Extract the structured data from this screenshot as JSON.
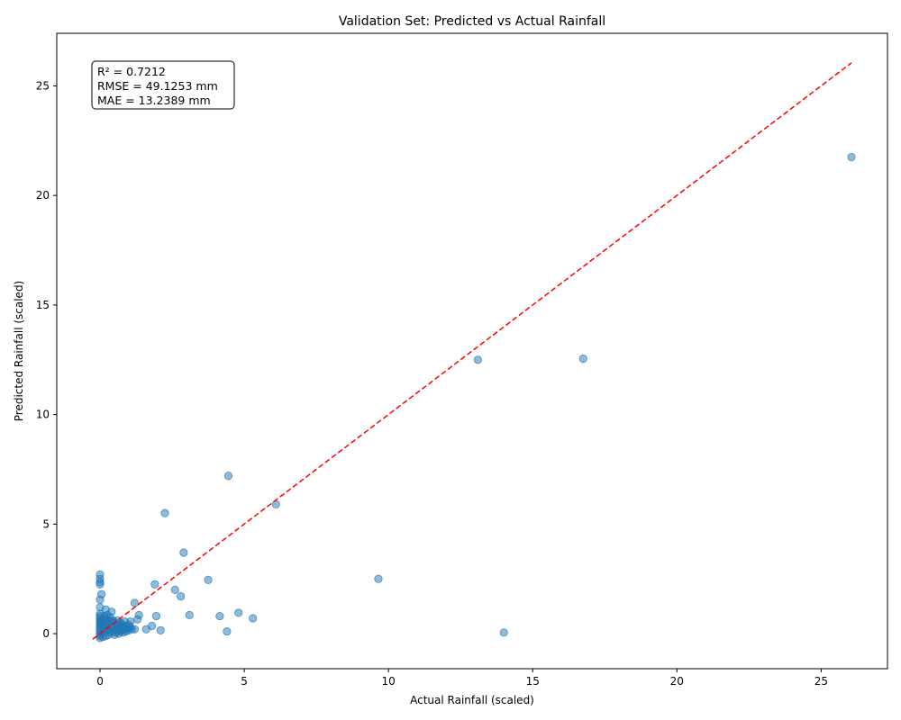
{
  "chart_data": {
    "type": "scatter",
    "title": "Validation Set: Predicted vs Actual Rainfall",
    "xlabel": "Actual Rainfall (scaled)",
    "ylabel": "Predicted Rainfall (scaled)",
    "xlim": [
      -1.5,
      27.3
    ],
    "ylim": [
      -1.6,
      27.4
    ],
    "x_ticks": [
      0,
      5,
      10,
      15,
      20,
      25
    ],
    "y_ticks": [
      0,
      5,
      10,
      15,
      20,
      25
    ],
    "grid": false,
    "point_color": "#1f77b4",
    "reference_line": {
      "style": "dashed",
      "color": "#ff0000",
      "from": [
        -0.25,
        -0.25
      ],
      "to": [
        26.05,
        26.05
      ]
    },
    "stats": [
      "R² = 0.7212",
      "RMSE = 49.1253 mm",
      "MAE = 13.2389 mm"
    ],
    "points": [
      [
        26.05,
        21.75
      ],
      [
        16.75,
        12.55
      ],
      [
        13.1,
        12.5
      ],
      [
        4.45,
        7.2
      ],
      [
        6.1,
        5.9
      ],
      [
        2.25,
        5.5
      ],
      [
        2.9,
        3.7
      ],
      [
        9.65,
        2.5
      ],
      [
        3.75,
        2.45
      ],
      [
        1.9,
        2.25
      ],
      [
        2.6,
        2.0
      ],
      [
        2.8,
        1.7
      ],
      [
        0.0,
        2.7
      ],
      [
        0.0,
        2.5
      ],
      [
        0.0,
        2.35
      ],
      [
        0.0,
        2.25
      ],
      [
        0.05,
        1.8
      ],
      [
        0.0,
        1.55
      ],
      [
        1.2,
        1.4
      ],
      [
        0.0,
        1.2
      ],
      [
        0.2,
        1.1
      ],
      [
        0.4,
        1.0
      ],
      [
        4.8,
        0.95
      ],
      [
        3.1,
        0.85
      ],
      [
        1.35,
        0.85
      ],
      [
        1.95,
        0.8
      ],
      [
        4.15,
        0.8
      ],
      [
        5.3,
        0.7
      ],
      [
        1.3,
        0.65
      ],
      [
        1.05,
        0.55
      ],
      [
        1.8,
        0.35
      ],
      [
        1.6,
        0.2
      ],
      [
        2.1,
        0.15
      ],
      [
        1.2,
        0.2
      ],
      [
        4.4,
        0.1
      ],
      [
        14.0,
        0.05
      ],
      [
        0.0,
        0.9
      ],
      [
        0.0,
        0.8
      ],
      [
        0.0,
        0.7
      ],
      [
        0.0,
        0.6
      ],
      [
        0.0,
        0.5
      ],
      [
        0.0,
        0.4
      ],
      [
        0.0,
        0.3
      ],
      [
        0.0,
        0.2
      ],
      [
        0.0,
        0.1
      ],
      [
        0.0,
        0.0
      ],
      [
        0.0,
        -0.1
      ],
      [
        0.0,
        -0.2
      ],
      [
        0.05,
        0.35
      ],
      [
        0.05,
        0.05
      ],
      [
        0.1,
        0.65
      ],
      [
        0.1,
        0.25
      ],
      [
        0.1,
        -0.15
      ],
      [
        0.15,
        0.45
      ],
      [
        0.15,
        0.1
      ],
      [
        0.2,
        0.7
      ],
      [
        0.2,
        0.3
      ],
      [
        0.2,
        -0.1
      ],
      [
        0.25,
        0.5
      ],
      [
        0.25,
        0.15
      ],
      [
        0.3,
        0.6
      ],
      [
        0.3,
        0.2
      ],
      [
        0.3,
        -0.05
      ],
      [
        0.35,
        0.4
      ],
      [
        0.35,
        0.05
      ],
      [
        0.4,
        0.55
      ],
      [
        0.4,
        0.25
      ],
      [
        0.45,
        0.1
      ],
      [
        0.45,
        0.35
      ],
      [
        0.5,
        0.5
      ],
      [
        0.5,
        0.2
      ],
      [
        0.5,
        -0.05
      ],
      [
        0.55,
        0.3
      ],
      [
        0.55,
        0.05
      ],
      [
        0.6,
        0.6
      ],
      [
        0.6,
        0.15
      ],
      [
        0.65,
        0.4
      ],
      [
        0.65,
        0.0
      ],
      [
        0.7,
        0.25
      ],
      [
        0.7,
        0.1
      ],
      [
        0.75,
        0.45
      ],
      [
        0.75,
        0.15
      ],
      [
        0.8,
        0.3
      ],
      [
        0.8,
        0.05
      ],
      [
        0.85,
        0.55
      ],
      [
        0.85,
        0.2
      ],
      [
        0.9,
        0.35
      ],
      [
        0.9,
        0.1
      ],
      [
        0.95,
        0.25
      ],
      [
        1.0,
        0.4
      ],
      [
        1.0,
        0.15
      ],
      [
        1.05,
        0.3
      ],
      [
        1.1,
        0.2
      ],
      [
        0.15,
        0.8
      ],
      [
        0.25,
        0.85
      ],
      [
        0.05,
        0.55
      ],
      [
        0.35,
        0.75
      ],
      [
        0.45,
        0.6
      ],
      [
        0.6,
        0.35
      ],
      [
        0.7,
        0.5
      ]
    ]
  }
}
